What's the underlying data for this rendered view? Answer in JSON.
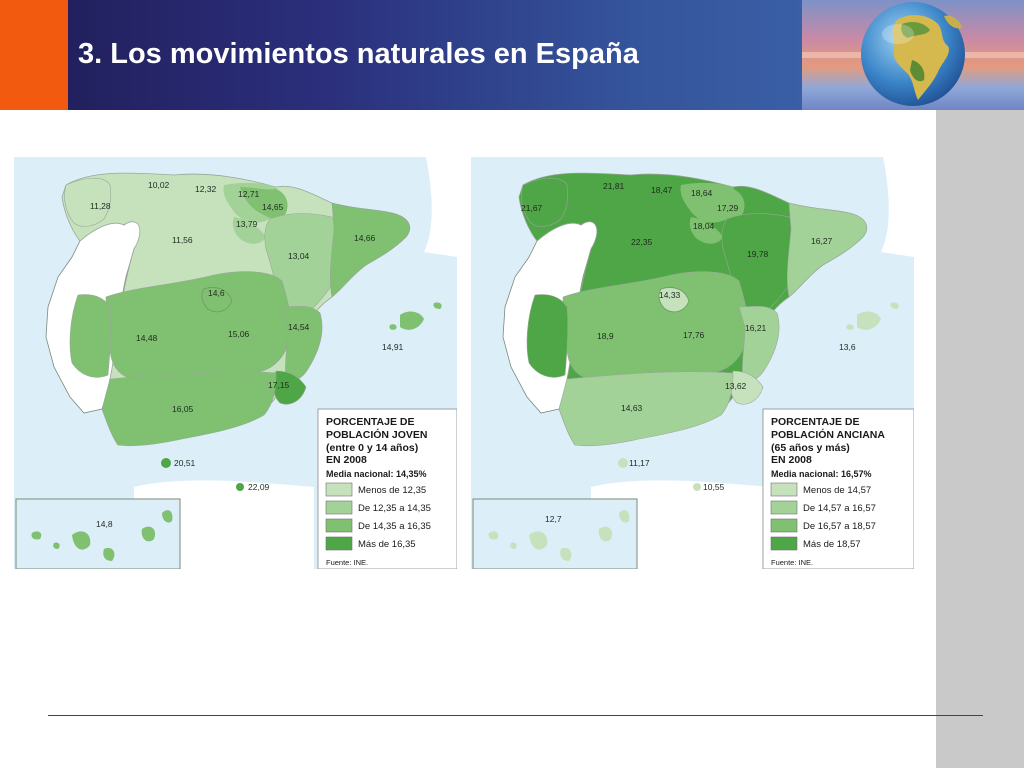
{
  "slide": {
    "title": "3. Los movimientos naturales en España",
    "colors": {
      "accent_orange": "#f25a10",
      "title_bar": "#2b2f7c",
      "sea": "#dceef8",
      "portugal": "#ffffff"
    },
    "icons": [
      "globe-icon"
    ]
  },
  "maps": [
    {
      "id": "joven",
      "legend": {
        "title_lines": [
          "PORCENTAJE DE",
          "POBLACIÓN JOVEN",
          "(entre 0 y 14 años)",
          "EN 2008"
        ],
        "national_average": "Media nacional: 14,35%",
        "classes": [
          {
            "label": "Menos de 12,35",
            "color": "#c5e2bd"
          },
          {
            "label": "De 12,35 a 14,35",
            "color": "#a3d298"
          },
          {
            "label": "De 14,35 a 16,35",
            "color": "#7fc071"
          },
          {
            "label": "Más de 16,35",
            "color": "#4ea646"
          }
        ],
        "source": "Fuente: INE."
      },
      "regions": [
        {
          "name": "Galicia",
          "value": "11,28",
          "class": 0
        },
        {
          "name": "Asturias",
          "value": "10,02",
          "class": 0
        },
        {
          "name": "Cantabria",
          "value": "12,32",
          "class": 0
        },
        {
          "name": "País Vasco",
          "value": "12,71",
          "class": 1
        },
        {
          "name": "Navarra",
          "value": "14,65",
          "class": 2
        },
        {
          "name": "La Rioja",
          "value": "13,79",
          "class": 1
        },
        {
          "name": "Castilla y León",
          "value": "11,56",
          "class": 0
        },
        {
          "name": "Aragón",
          "value": "13,04",
          "class": 1
        },
        {
          "name": "Cataluña",
          "value": "14,66",
          "class": 2
        },
        {
          "name": "Madrid",
          "value": "14,6",
          "class": 2
        },
        {
          "name": "Extremadura",
          "value": "14,48",
          "class": 2
        },
        {
          "name": "Castilla-La Mancha",
          "value": "15,06",
          "class": 2
        },
        {
          "name": "Comunidad Valenciana",
          "value": "14,54",
          "class": 2
        },
        {
          "name": "Murcia",
          "value": "17,15",
          "class": 3
        },
        {
          "name": "Andalucía",
          "value": "16,05",
          "class": 2
        },
        {
          "name": "Baleares",
          "value": "14,91",
          "class": 2
        },
        {
          "name": "Ceuta",
          "value": "20,51",
          "class": 3
        },
        {
          "name": "Melilla",
          "value": "22,09",
          "class": 3
        },
        {
          "name": "Canarias",
          "value": "14,8",
          "class": 2
        }
      ]
    },
    {
      "id": "anciana",
      "legend": {
        "title_lines": [
          "PORCENTAJE DE",
          "POBLACIÓN ANCIANA",
          "(65 años y más)",
          "EN 2008"
        ],
        "national_average": "Media nacional: 16,57%",
        "classes": [
          {
            "label": "Menos de 14,57",
            "color": "#c5e2bd"
          },
          {
            "label": "De 14,57 a 16,57",
            "color": "#a3d298"
          },
          {
            "label": "De 16,57 a 18,57",
            "color": "#7fc071"
          },
          {
            "label": "Más de 18,57",
            "color": "#4ea646"
          }
        ],
        "source": "Fuente: INE."
      },
      "regions": [
        {
          "name": "Galicia",
          "value": "21,67",
          "class": 3
        },
        {
          "name": "Asturias",
          "value": "21,81",
          "class": 3
        },
        {
          "name": "Cantabria",
          "value": "18,47",
          "class": 2
        },
        {
          "name": "País Vasco",
          "value": "18,64",
          "class": 3
        },
        {
          "name": "Navarra",
          "value": "17,29",
          "class": 2
        },
        {
          "name": "La Rioja",
          "value": "18,04",
          "class": 2
        },
        {
          "name": "Castilla y León",
          "value": "22,35",
          "class": 3
        },
        {
          "name": "Aragón",
          "value": "19,78",
          "class": 3
        },
        {
          "name": "Cataluña",
          "value": "16,27",
          "class": 1
        },
        {
          "name": "Madrid",
          "value": "14,33",
          "class": 0
        },
        {
          "name": "Extremadura",
          "value": "18,9",
          "class": 3
        },
        {
          "name": "Castilla-La Mancha",
          "value": "17,76",
          "class": 2
        },
        {
          "name": "Comunidad Valenciana",
          "value": "16,21",
          "class": 1
        },
        {
          "name": "Murcia",
          "value": "13,62",
          "class": 0
        },
        {
          "name": "Andalucía",
          "value": "14,63",
          "class": 1
        },
        {
          "name": "Baleares",
          "value": "13,6",
          "class": 0
        },
        {
          "name": "Ceuta",
          "value": "11,17",
          "class": 0
        },
        {
          "name": "Melilla",
          "value": "10,55",
          "class": 0
        },
        {
          "name": "Canarias",
          "value": "12,7",
          "class": 0
        }
      ]
    }
  ]
}
